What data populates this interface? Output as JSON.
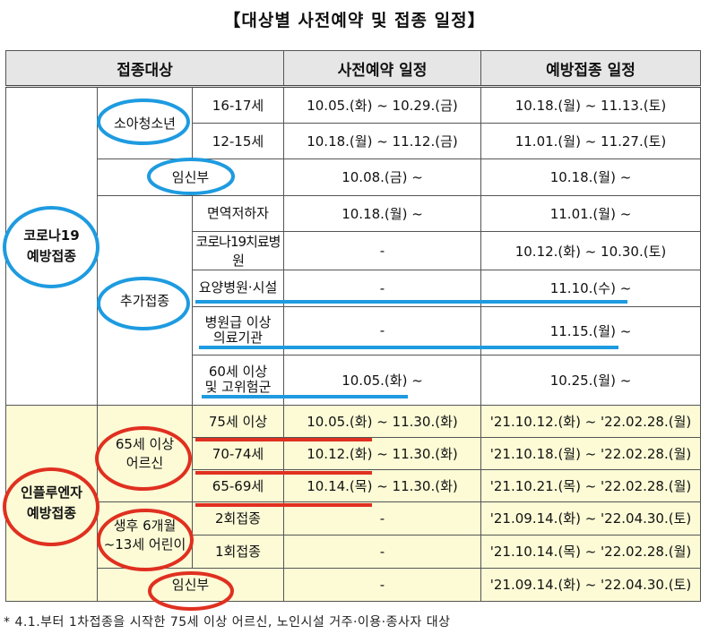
{
  "title": "【대상별 사전예약 및 접종 일정】",
  "headers": {
    "target": "접종대상",
    "reservation": "사전예약 일정",
    "vaccination": "예방접종 일정"
  },
  "covid": {
    "label_line1": "코로나19",
    "label_line2": "예방접종",
    "youth_group": "소아청소년",
    "youth_rows": [
      {
        "sub": "16-17세",
        "reservation": "10.05.(화) ~ 10.29.(금)",
        "vaccination": "10.18.(월) ~ 11.13.(토)"
      },
      {
        "sub": "12-15세",
        "reservation": "10.18.(월) ~ 11.12.(금)",
        "vaccination": "11.01.(월) ~ 11.27.(토)"
      }
    ],
    "pregnant": {
      "label": "임신부",
      "reservation": "10.08.(금) ~",
      "vaccination": "10.18.(월) ~"
    },
    "booster_group": "추가접종",
    "booster_rows": [
      {
        "sub": "면역저하자",
        "reservation": "10.18.(월) ~",
        "vaccination": "11.01.(월) ~"
      },
      {
        "sub": "코로나19치료병원",
        "reservation": "-",
        "vaccination": "10.12.(화) ~ 10.30.(토)"
      },
      {
        "sub": "요양병원·시설",
        "reservation": "-",
        "vaccination": "11.10.(수) ~"
      },
      {
        "sub_line1": "병원급 이상",
        "sub_line2": "의료기관",
        "reservation": "-",
        "vaccination": "11.15.(월) ~"
      },
      {
        "sub_line1": "60세 이상",
        "sub_line2": "및 고위험군",
        "reservation": "10.05.(화) ~",
        "vaccination": "10.25.(월) ~"
      }
    ]
  },
  "flu": {
    "label_line1": "인플루엔자",
    "label_line2": "예방접종",
    "senior_line1": "65세 이상",
    "senior_line2": "어르신",
    "senior_rows": [
      {
        "sub": "75세 이상",
        "reservation": "10.05.(화) ~ 11.30.(화)",
        "vaccination": "'21.10.12.(화) ~ '22.02.28.(월)"
      },
      {
        "sub": "70-74세",
        "reservation": "10.12.(화) ~ 11.30.(화)",
        "vaccination": "'21.10.18.(월) ~ '22.02.28.(월)"
      },
      {
        "sub": "65-69세",
        "reservation": "10.14.(목) ~ 11.30.(화)",
        "vaccination": "'21.10.21.(목) ~ '22.02.28.(월)"
      }
    ],
    "child_line1": "생후 6개월",
    "child_line2": "~13세 어린이",
    "child_rows": [
      {
        "sub": "2회접종",
        "reservation": "-",
        "vaccination": "'21.09.14.(화) ~ '22.04.30.(토)"
      },
      {
        "sub": "1회접종",
        "reservation": "-",
        "vaccination": "'21.10.14.(목) ~ '22.02.28.(월)"
      }
    ],
    "pregnant": {
      "label": "임신부",
      "reservation": "-",
      "vaccination": "'21.09.14.(화) ~ '22.04.30.(토)"
    }
  },
  "footnote": "* 4.1.부터 1차접종을 시작한 75세 이상 어르신, 노인시설 거주·이용·종사자 대상",
  "colors": {
    "covid_mark": "#1e9be0",
    "flu_mark": "#e03020",
    "flu_bg": "#fcfbd6"
  }
}
